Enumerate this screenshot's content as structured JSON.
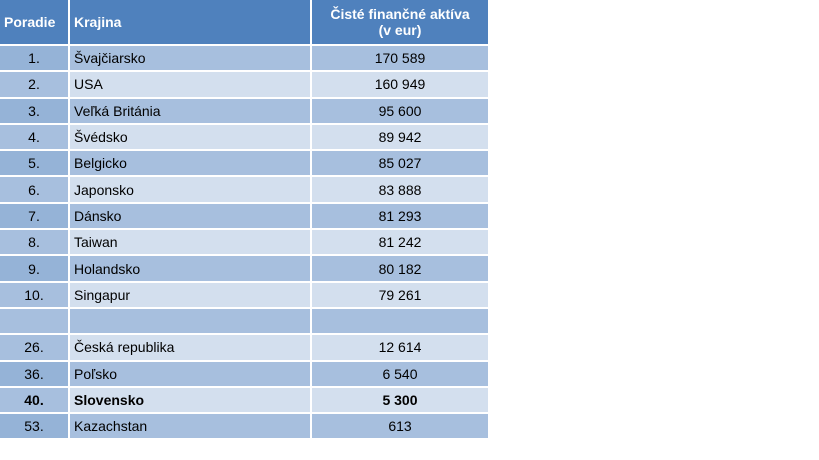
{
  "table": {
    "header": [
      "Poradie",
      "Krajina",
      "Čisté finančné aktíva\n(v eur)"
    ],
    "rows": [
      [
        "1.",
        "Švajčiarsko",
        "170 589"
      ],
      [
        "2.",
        "USA",
        "160 949"
      ],
      [
        "3.",
        "Veľká Británia",
        "95 600"
      ],
      [
        "4.",
        "Švédsko",
        "89 942"
      ],
      [
        "5.",
        "Belgicko",
        "85 027"
      ],
      [
        "6.",
        "Japonsko",
        "83 888"
      ],
      [
        "7.",
        "Dánsko",
        "81 293"
      ],
      [
        "8.",
        "Taiwan",
        "81 242"
      ],
      [
        "9.",
        "Holandsko",
        "80 182"
      ],
      [
        "10.",
        "Singapur",
        "79 261"
      ],
      [
        null,
        null,
        null
      ],
      [
        "26.",
        "Česká republika",
        "12 614"
      ],
      [
        "36.",
        "Poľsko",
        "6 540"
      ],
      [
        "40.",
        "Slovensko",
        "5 300"
      ],
      [
        "53.",
        "Kazachstan",
        "613"
      ]
    ],
    "emphasized_rows": [
      13
    ]
  }
}
